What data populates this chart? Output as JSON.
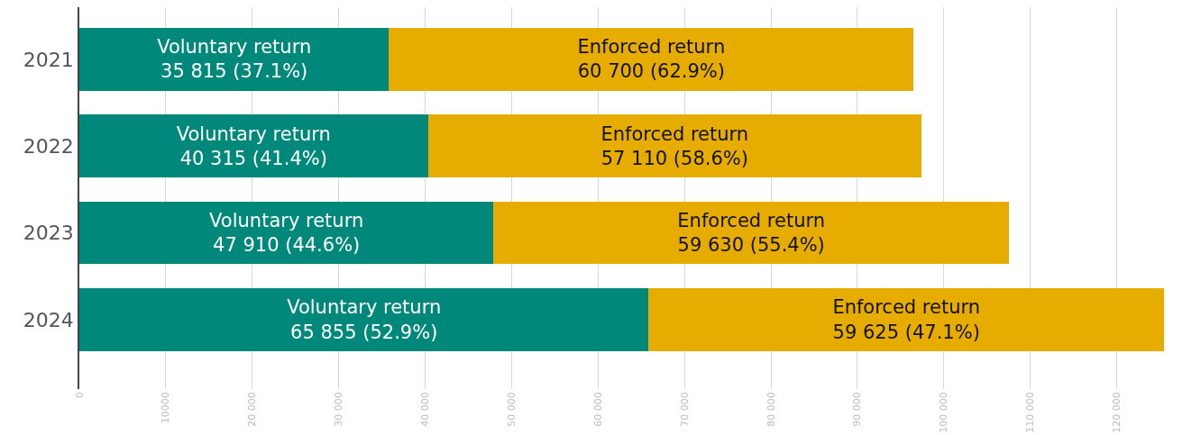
{
  "chart_data": {
    "type": "bar",
    "orientation": "horizontal",
    "stacked": true,
    "categories": [
      "2021",
      "2022",
      "2023",
      "2024"
    ],
    "series": [
      {
        "name": "Voluntary return",
        "color": "#00887a",
        "values": [
          35815,
          40315,
          47910,
          65855
        ],
        "value_labels": [
          "35 815 (37.1%)",
          "40 315 (41.4%)",
          "47 910 (44.6%)",
          "65 855 (52.9%)"
        ]
      },
      {
        "name": "Enforced return",
        "color": "#e6ac00",
        "values": [
          60700,
          57110,
          59630,
          59625
        ],
        "value_labels": [
          "60 700 (62.9%)",
          "57 110 (58.6%)",
          "59 630 (55.4%)",
          "59 625 (47.1%)"
        ]
      }
    ],
    "xlim": [
      0,
      128500
    ],
    "xticks": [
      {
        "value": 0,
        "label": "0"
      },
      {
        "value": 10000,
        "label": "10000"
      },
      {
        "value": 20000,
        "label": "20 000"
      },
      {
        "value": 30000,
        "label": "30 000"
      },
      {
        "value": 40000,
        "label": "40 000"
      },
      {
        "value": 50000,
        "label": "50 000"
      },
      {
        "value": 60000,
        "label": "60 000"
      },
      {
        "value": 70000,
        "label": "70 000"
      },
      {
        "value": 80000,
        "label": "80 000"
      },
      {
        "value": 90000,
        "label": "90 000"
      },
      {
        "value": 100000,
        "label": "100 000"
      },
      {
        "value": 110000,
        "label": "110 000"
      },
      {
        "value": 120000,
        "label": "120 000"
      }
    ],
    "grid": "x",
    "legend": false
  }
}
